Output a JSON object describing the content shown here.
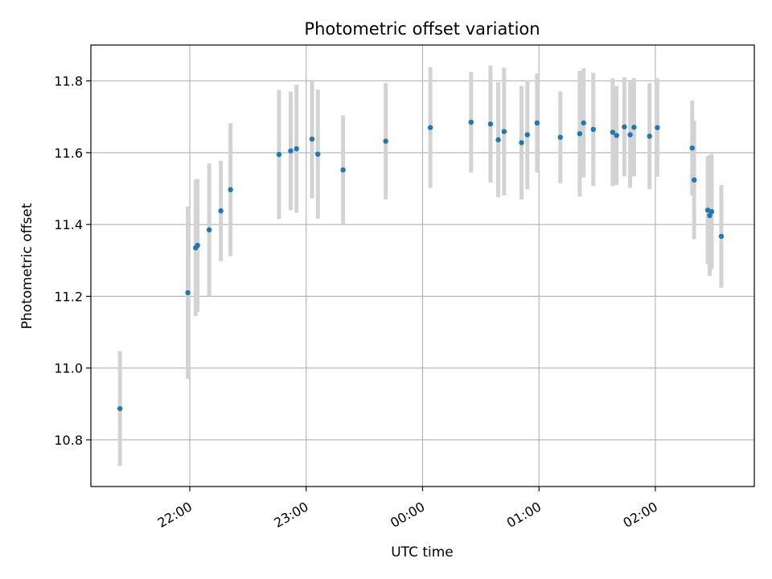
{
  "chart_data": {
    "type": "scatter",
    "title": "Photometric offset variation",
    "xlabel": "UTC time",
    "ylabel": "Photometric offset",
    "x_unit": "UTC",
    "x_ticks": [
      "22:00",
      "23:00",
      "00:00",
      "01:00",
      "02:00"
    ],
    "x_tick_values": [
      "22:00",
      "23:00",
      "00:00",
      "01:00",
      "02:00"
    ],
    "xlim": [
      "21:09",
      "02:51"
    ],
    "ylim": [
      10.67,
      11.9
    ],
    "y_ticks": [
      10.8,
      11.0,
      11.2,
      11.4,
      11.6,
      11.8
    ],
    "grid": true,
    "legend": "none",
    "colors": {
      "point": "#1f77b4",
      "errorbar": "#d3d3d3",
      "grid": "#b0b0b0"
    },
    "points": [
      {
        "x": "21:24",
        "y": 10.887,
        "err": 0.16
      },
      {
        "x": "21:59",
        "y": 11.21,
        "err": 0.24
      },
      {
        "x": "22:03",
        "y": 11.335,
        "err": 0.19
      },
      {
        "x": "22:04",
        "y": 11.342,
        "err": 0.185
      },
      {
        "x": "22:10",
        "y": 11.385,
        "err": 0.185
      },
      {
        "x": "22:16",
        "y": 11.438,
        "err": 0.14
      },
      {
        "x": "22:21",
        "y": 11.497,
        "err": 0.185
      },
      {
        "x": "22:46",
        "y": 11.595,
        "err": 0.18
      },
      {
        "x": "22:52",
        "y": 11.605,
        "err": 0.165
      },
      {
        "x": "22:55",
        "y": 11.611,
        "err": 0.178
      },
      {
        "x": "23:03",
        "y": 11.638,
        "err": 0.165
      },
      {
        "x": "23:06",
        "y": 11.596,
        "err": 0.18
      },
      {
        "x": "23:19",
        "y": 11.552,
        "err": 0.152
      },
      {
        "x": "23:41",
        "y": 11.632,
        "err": 0.162
      },
      {
        "x": "00:04",
        "y": 11.67,
        "err": 0.168
      },
      {
        "x": "00:25",
        "y": 11.685,
        "err": 0.14
      },
      {
        "x": "00:35",
        "y": 11.68,
        "err": 0.163
      },
      {
        "x": "00:39",
        "y": 11.636,
        "err": 0.16
      },
      {
        "x": "00:42",
        "y": 11.659,
        "err": 0.178
      },
      {
        "x": "00:51",
        "y": 11.628,
        "err": 0.158
      },
      {
        "x": "00:54",
        "y": 11.65,
        "err": 0.152
      },
      {
        "x": "00:59",
        "y": 11.683,
        "err": 0.138
      },
      {
        "x": "01:11",
        "y": 11.643,
        "err": 0.128
      },
      {
        "x": "01:21",
        "y": 11.653,
        "err": 0.175
      },
      {
        "x": "01:23",
        "y": 11.683,
        "err": 0.152
      },
      {
        "x": "01:28",
        "y": 11.665,
        "err": 0.158
      },
      {
        "x": "01:38",
        "y": 11.657,
        "err": 0.15
      },
      {
        "x": "01:40",
        "y": 11.648,
        "err": 0.138
      },
      {
        "x": "01:44",
        "y": 11.672,
        "err": 0.138
      },
      {
        "x": "01:47",
        "y": 11.65,
        "err": 0.148
      },
      {
        "x": "01:49",
        "y": 11.671,
        "err": 0.137
      },
      {
        "x": "01:57",
        "y": 11.646,
        "err": 0.148
      },
      {
        "x": "02:01",
        "y": 11.67,
        "err": 0.137
      },
      {
        "x": "02:19",
        "y": 11.613,
        "err": 0.132
      },
      {
        "x": "02:20",
        "y": 11.524,
        "err": 0.165
      },
      {
        "x": "02:27",
        "y": 11.44,
        "err": 0.15
      },
      {
        "x": "02:28",
        "y": 11.425,
        "err": 0.168
      },
      {
        "x": "02:29",
        "y": 11.436,
        "err": 0.16
      },
      {
        "x": "02:34",
        "y": 11.367,
        "err": 0.143
      }
    ]
  }
}
